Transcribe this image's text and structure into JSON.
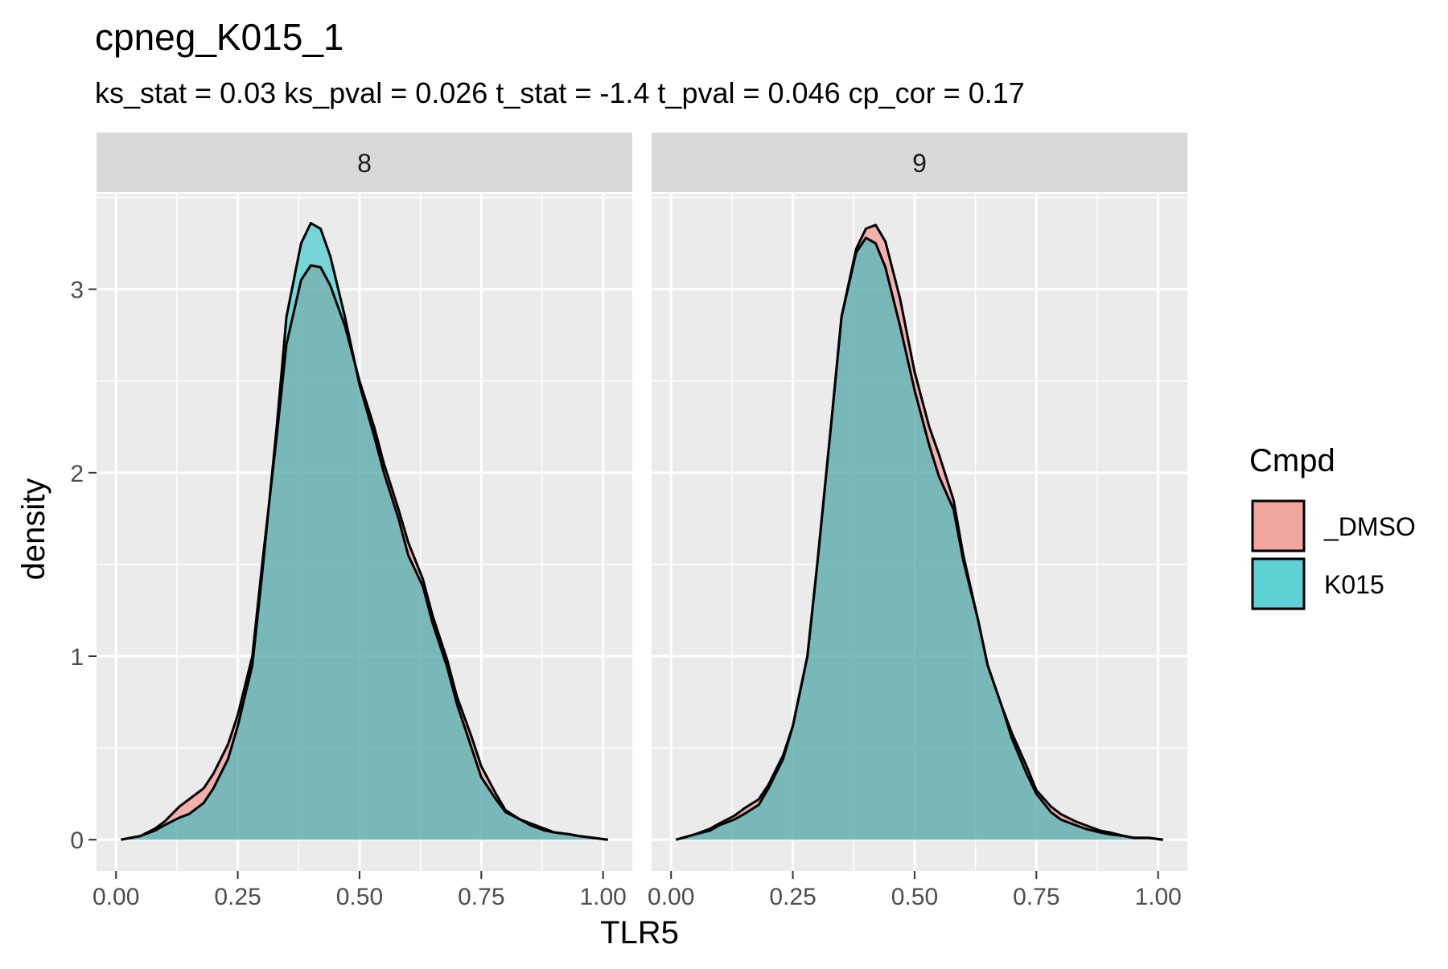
{
  "chart_data": {
    "type": "area",
    "title": "cpneg_K015_1",
    "subtitle": "ks_stat = 0.03 ks_pval = 0.026 t_stat = -1.4 t_pval = 0.046 cp_cor = 0.17",
    "xlabel": "TLR5",
    "ylabel": "density",
    "xlim": [
      -0.04,
      1.06
    ],
    "ylim": [
      -0.17,
      3.52
    ],
    "x_ticks": [
      0.0,
      0.25,
      0.5,
      0.75,
      1.0
    ],
    "x_tick_labels": [
      "0.00",
      "0.25",
      "0.50",
      "0.75",
      "1.00"
    ],
    "y_ticks": [
      0,
      1,
      2,
      3
    ],
    "y_tick_labels": [
      "0",
      "1",
      "2",
      "3"
    ],
    "grid": true,
    "legend": {
      "title": "Cmpd",
      "placement": "right",
      "entries": [
        {
          "name": "_DMSO",
          "color": "#F8766D"
        },
        {
          "name": "K015",
          "color": "#00BFC4"
        }
      ]
    },
    "facets": [
      {
        "label": "8",
        "series": [
          {
            "name": "_DMSO",
            "color": "#F8766D",
            "x": [
              0.01,
              0.05,
              0.08,
              0.1,
              0.13,
              0.15,
              0.18,
              0.2,
              0.23,
              0.25,
              0.28,
              0.3,
              0.33,
              0.35,
              0.38,
              0.4,
              0.42,
              0.44,
              0.47,
              0.5,
              0.53,
              0.55,
              0.58,
              0.6,
              0.63,
              0.65,
              0.68,
              0.7,
              0.73,
              0.75,
              0.78,
              0.8,
              0.83,
              0.85,
              0.88,
              0.9,
              0.93,
              0.95,
              0.98,
              1.01
            ],
            "y": [
              0,
              0.02,
              0.06,
              0.1,
              0.18,
              0.22,
              0.28,
              0.36,
              0.52,
              0.68,
              1.0,
              1.5,
              2.2,
              2.7,
              3.05,
              3.13,
              3.12,
              3.02,
              2.8,
              2.5,
              2.25,
              2.05,
              1.8,
              1.62,
              1.42,
              1.22,
              0.98,
              0.78,
              0.56,
              0.4,
              0.25,
              0.16,
              0.11,
              0.09,
              0.06,
              0.04,
              0.03,
              0.02,
              0.01,
              0
            ]
          },
          {
            "name": "K015",
            "color": "#00BFC4",
            "x": [
              0.01,
              0.05,
              0.08,
              0.1,
              0.13,
              0.15,
              0.18,
              0.2,
              0.23,
              0.25,
              0.28,
              0.3,
              0.33,
              0.35,
              0.38,
              0.4,
              0.42,
              0.44,
              0.47,
              0.5,
              0.53,
              0.55,
              0.58,
              0.6,
              0.63,
              0.65,
              0.68,
              0.7,
              0.73,
              0.75,
              0.78,
              0.8,
              0.83,
              0.85,
              0.88,
              0.9,
              0.93,
              0.95,
              0.98,
              1.01
            ],
            "y": [
              0,
              0.02,
              0.05,
              0.08,
              0.12,
              0.14,
              0.2,
              0.28,
              0.44,
              0.62,
              0.95,
              1.45,
              2.25,
              2.85,
              3.25,
              3.36,
              3.33,
              3.18,
              2.85,
              2.48,
              2.2,
              2.0,
              1.75,
              1.55,
              1.38,
              1.18,
              0.94,
              0.74,
              0.5,
              0.34,
              0.22,
              0.15,
              0.11,
              0.08,
              0.05,
              0.04,
              0.03,
              0.02,
              0.01,
              0
            ]
          }
        ]
      },
      {
        "label": "9",
        "series": [
          {
            "name": "_DMSO",
            "color": "#F8766D",
            "x": [
              0.01,
              0.05,
              0.08,
              0.1,
              0.13,
              0.15,
              0.18,
              0.2,
              0.23,
              0.25,
              0.28,
              0.3,
              0.33,
              0.35,
              0.38,
              0.4,
              0.42,
              0.44,
              0.47,
              0.5,
              0.53,
              0.55,
              0.58,
              0.6,
              0.63,
              0.65,
              0.68,
              0.7,
              0.73,
              0.75,
              0.78,
              0.8,
              0.83,
              0.85,
              0.88,
              0.9,
              0.93,
              0.95,
              0.98,
              1.01
            ],
            "y": [
              0,
              0.03,
              0.06,
              0.09,
              0.13,
              0.17,
              0.22,
              0.3,
              0.46,
              0.62,
              1.0,
              1.5,
              2.3,
              2.85,
              3.22,
              3.33,
              3.35,
              3.26,
              2.95,
              2.55,
              2.25,
              2.1,
              1.85,
              1.55,
              1.2,
              0.95,
              0.72,
              0.58,
              0.4,
              0.27,
              0.18,
              0.14,
              0.1,
              0.08,
              0.05,
              0.04,
              0.02,
              0.01,
              0.01,
              0
            ]
          },
          {
            "name": "K015",
            "color": "#00BFC4",
            "x": [
              0.01,
              0.05,
              0.08,
              0.1,
              0.13,
              0.15,
              0.18,
              0.2,
              0.23,
              0.25,
              0.28,
              0.3,
              0.33,
              0.35,
              0.38,
              0.4,
              0.42,
              0.44,
              0.47,
              0.5,
              0.53,
              0.55,
              0.58,
              0.6,
              0.63,
              0.65,
              0.68,
              0.7,
              0.73,
              0.75,
              0.78,
              0.8,
              0.83,
              0.85,
              0.88,
              0.9,
              0.93,
              0.95,
              0.98,
              1.01
            ],
            "y": [
              0,
              0.03,
              0.05,
              0.08,
              0.11,
              0.14,
              0.19,
              0.28,
              0.44,
              0.62,
              1.0,
              1.5,
              2.3,
              2.85,
              3.2,
              3.28,
              3.25,
              3.12,
              2.8,
              2.45,
              2.15,
              1.98,
              1.8,
              1.52,
              1.2,
              0.95,
              0.72,
              0.55,
              0.36,
              0.25,
              0.15,
              0.11,
              0.08,
              0.06,
              0.04,
              0.03,
              0.02,
              0.01,
              0.01,
              0
            ]
          }
        ]
      }
    ]
  }
}
